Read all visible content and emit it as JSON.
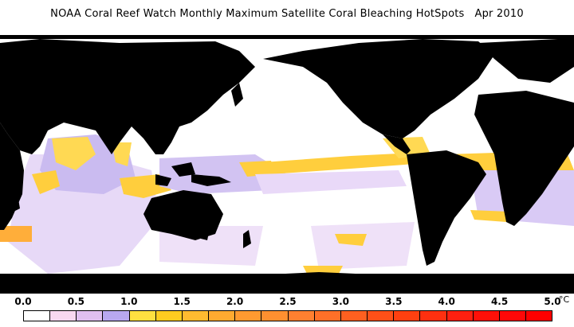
{
  "title": "NOAA Coral Reef Watch Monthly Maximum Satellite Coral Bleaching HotSpots   Apr 2010",
  "legend": {
    "tick_labels": [
      "0.0",
      "0.5",
      "1.0",
      "1.5",
      "2.0",
      "2.5",
      "3.0",
      "3.5",
      "4.0",
      "4.5",
      "5.0"
    ],
    "unit": "°C",
    "colors": [
      "#ffffff",
      "#f8d8f0",
      "#e0c0f0",
      "#b8a8f0",
      "#ffe040",
      "#ffcc20",
      "#ffbb30",
      "#ffaa30",
      "#ff9a30",
      "#ff9030",
      "#ff8030",
      "#ff7028",
      "#ff6020",
      "#ff5018",
      "#ff4010",
      "#ff3010",
      "#ff2010",
      "#ff1008",
      "#ff0808",
      "#ff0000"
    ]
  },
  "map": {
    "land_color": "#000000",
    "ocean_color": "#ffffff"
  }
}
